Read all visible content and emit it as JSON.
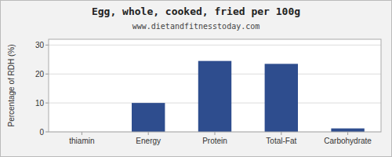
{
  "chart_data": {
    "type": "bar",
    "title": "Egg, whole, cooked, fried per 100g",
    "subtitle": "www.dietandfitnesstoday.com",
    "categories": [
      "thiamin",
      "Energy",
      "Protein",
      "Total-Fat",
      "Carbohydrate"
    ],
    "values": [
      0,
      10,
      24.5,
      23.5,
      1.2
    ],
    "color": "#2e4d8e",
    "ylabel": "Percentage of RDH (%)",
    "ylim": [
      0,
      32
    ],
    "yticks": [
      0,
      10,
      20,
      30
    ],
    "grid": true
  }
}
